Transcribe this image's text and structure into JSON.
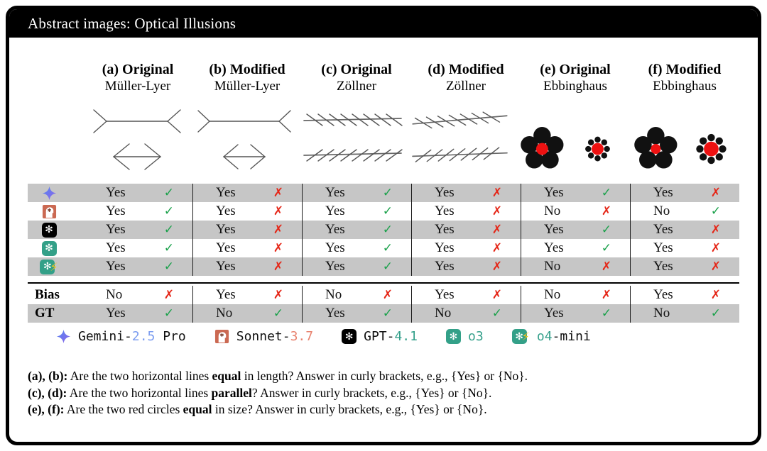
{
  "title": "Abstract images: Optical Illusions",
  "columns": [
    {
      "title": "(a) Original",
      "subtitle": "Müller-Lyer"
    },
    {
      "title": "(b) Modified",
      "subtitle": "Müller-Lyer"
    },
    {
      "title": "(c) Original",
      "subtitle": "Zöllner"
    },
    {
      "title": "(d) Modified",
      "subtitle": "Zöllner"
    },
    {
      "title": "(e) Original",
      "subtitle": "Ebbinghaus"
    },
    {
      "title": "(f) Modified",
      "subtitle": "Ebbinghaus"
    }
  ],
  "illusions": [
    "muller-lyer-original-figure",
    "muller-lyer-modified-figure",
    "zollner-original-figure",
    "zollner-modified-figure",
    "ebbinghaus-original-figure",
    "ebbinghaus-modified-figure"
  ],
  "marks": {
    "correct": "✓",
    "incorrect": "✗"
  },
  "rows": [
    {
      "model": "Gemini-2.5 Pro",
      "icon": "gemini-icon",
      "shaded": true,
      "cells": [
        {
          "answer": "Yes",
          "mark": "correct"
        },
        {
          "answer": "Yes",
          "mark": "incorrect"
        },
        {
          "answer": "Yes",
          "mark": "correct"
        },
        {
          "answer": "Yes",
          "mark": "incorrect"
        },
        {
          "answer": "Yes",
          "mark": "correct"
        },
        {
          "answer": "Yes",
          "mark": "incorrect"
        }
      ]
    },
    {
      "model": "Sonnet-3.7",
      "icon": "sonnet-icon",
      "shaded": false,
      "cells": [
        {
          "answer": "Yes",
          "mark": "correct"
        },
        {
          "answer": "Yes",
          "mark": "incorrect"
        },
        {
          "answer": "Yes",
          "mark": "correct"
        },
        {
          "answer": "Yes",
          "mark": "incorrect"
        },
        {
          "answer": "No",
          "mark": "incorrect"
        },
        {
          "answer": "No",
          "mark": "correct"
        }
      ]
    },
    {
      "model": "GPT-4.1",
      "icon": "gpt-icon",
      "shaded": true,
      "cells": [
        {
          "answer": "Yes",
          "mark": "correct"
        },
        {
          "answer": "Yes",
          "mark": "incorrect"
        },
        {
          "answer": "Yes",
          "mark": "correct"
        },
        {
          "answer": "Yes",
          "mark": "incorrect"
        },
        {
          "answer": "Yes",
          "mark": "correct"
        },
        {
          "answer": "Yes",
          "mark": "incorrect"
        }
      ]
    },
    {
      "model": "o3",
      "icon": "o3-icon",
      "shaded": false,
      "cells": [
        {
          "answer": "Yes",
          "mark": "correct"
        },
        {
          "answer": "Yes",
          "mark": "incorrect"
        },
        {
          "answer": "Yes",
          "mark": "correct"
        },
        {
          "answer": "Yes",
          "mark": "incorrect"
        },
        {
          "answer": "Yes",
          "mark": "correct"
        },
        {
          "answer": "Yes",
          "mark": "incorrect"
        }
      ]
    },
    {
      "model": "o4-mini",
      "icon": "o4-mini-icon",
      "shaded": true,
      "cells": [
        {
          "answer": "Yes",
          "mark": "correct"
        },
        {
          "answer": "Yes",
          "mark": "incorrect"
        },
        {
          "answer": "Yes",
          "mark": "correct"
        },
        {
          "answer": "Yes",
          "mark": "incorrect"
        },
        {
          "answer": "No",
          "mark": "incorrect"
        },
        {
          "answer": "Yes",
          "mark": "incorrect"
        }
      ]
    }
  ],
  "summary_rows": [
    {
      "label": "Bias",
      "shaded": false,
      "cells": [
        {
          "answer": "No",
          "mark": "incorrect"
        },
        {
          "answer": "Yes",
          "mark": "incorrect"
        },
        {
          "answer": "No",
          "mark": "incorrect"
        },
        {
          "answer": "Yes",
          "mark": "incorrect"
        },
        {
          "answer": "No",
          "mark": "incorrect"
        },
        {
          "answer": "Yes",
          "mark": "incorrect"
        }
      ]
    },
    {
      "label": "GT",
      "shaded": true,
      "cells": [
        {
          "answer": "Yes",
          "mark": "correct"
        },
        {
          "answer": "No",
          "mark": "correct"
        },
        {
          "answer": "Yes",
          "mark": "correct"
        },
        {
          "answer": "No",
          "mark": "correct"
        },
        {
          "answer": "Yes",
          "mark": "correct"
        },
        {
          "answer": "No",
          "mark": "correct"
        }
      ]
    }
  ],
  "legend": [
    {
      "icon": "gemini-icon",
      "prefix": "Gemini-",
      "version": "2.5",
      "suffix": " Pro",
      "version_color": "#7b9cf0"
    },
    {
      "icon": "sonnet-icon",
      "prefix": "Sonnet-",
      "version": "3.7",
      "suffix": "",
      "version_color": "#e8826e"
    },
    {
      "icon": "gpt-icon",
      "prefix": "GPT-",
      "version": "4.1",
      "suffix": "",
      "version_color": "#35a08b"
    },
    {
      "icon": "o3-icon",
      "prefix": "",
      "version": "o3",
      "suffix": "",
      "version_color": "#35a08b"
    },
    {
      "icon": "o4-mini-icon",
      "prefix": "",
      "version": "o4",
      "suffix": "-mini",
      "version_color": "#35a08b"
    }
  ],
  "footnotes": [
    {
      "label": "(a), (b):",
      "pre": " Are the two horizontal lines ",
      "bold": "equal",
      "post": " in length? Answer in curly brackets, e.g., {Yes} or {No}."
    },
    {
      "label": "(c), (d):",
      "pre": " Are the two horizontal lines ",
      "bold": "parallel",
      "post": "? Answer in curly brackets, e.g., {Yes} or {No}."
    },
    {
      "label": "(e), (f):",
      "pre": " Are the two red circles ",
      "bold": "equal",
      "post": " in size? Answer in curly brackets, e.g., {Yes} or {No}."
    }
  ],
  "icons": {
    "openai_glyph": "✻",
    "bolt_glyph": "⚡",
    "gemini_glyph": "four-point-star",
    "sonnet_glyph": "head-with-gear"
  },
  "colors": {
    "correct_green": "#1ba14b",
    "incorrect_red": "#e52617",
    "row_shade": "#c6c6c6",
    "frame_black": "#000000",
    "gemini_blue": "#5185f2",
    "gemini_purple": "#9064e8",
    "sonnet_salmon": "#cb6952",
    "openai_black": "#000000",
    "openai_teal": "#33a088",
    "bolt_yellow": "#f2c21b",
    "illusion_red": "#ee1111",
    "illusion_black": "#111111"
  }
}
